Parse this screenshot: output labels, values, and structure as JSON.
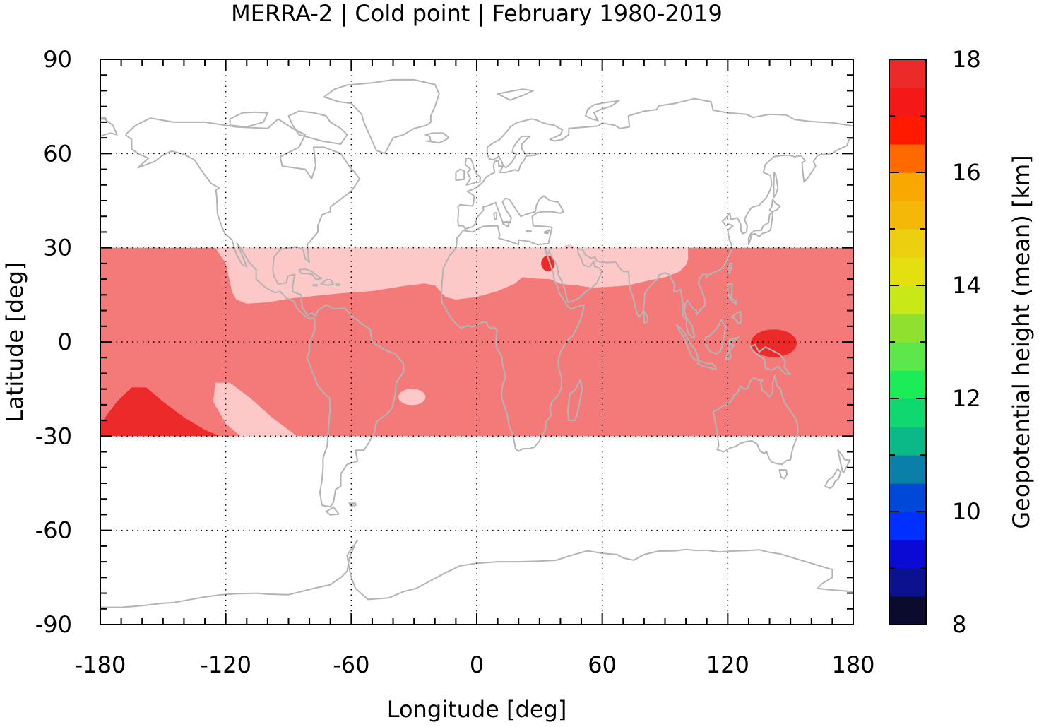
{
  "chart_data": {
    "type": "heatmap",
    "title": "MERRA-2 | Cold point | February 1980-2019",
    "xlabel": "Longitude [deg]",
    "ylabel": "Latitude [deg]",
    "xlim": [
      -180,
      180
    ],
    "ylim": [
      -90,
      90
    ],
    "xticks": [
      -180,
      -120,
      -60,
      0,
      60,
      120,
      180
    ],
    "yticks": [
      -90,
      -60,
      -30,
      0,
      30,
      60,
      90
    ],
    "grid": true,
    "colorbar": {
      "label": "Geopotential height (mean) [km]",
      "range": [
        8,
        18
      ],
      "ticks": [
        8,
        10,
        12,
        14,
        16,
        18
      ],
      "step": 0.5,
      "colors": [
        "#0b0b2e",
        "#0a1290",
        "#0a0ad4",
        "#0030ff",
        "#0048d8",
        "#0a80a8",
        "#0ab888",
        "#10d870",
        "#1cec58",
        "#5ce84a",
        "#90e030",
        "#c8e818",
        "#e4e010",
        "#ecd010",
        "#f4b808",
        "#f8a800",
        "#ff6a00",
        "#ff1a00",
        "#f41818",
        "#ec2a2a",
        "#f47a7a",
        "#fcc8c8"
      ]
    },
    "data_extent": {
      "lat": [
        -30,
        30
      ]
    },
    "regions": [
      {
        "level": 17.5,
        "color": "#f47a7a",
        "description": "background tropical band"
      },
      {
        "level": 18,
        "color": "#fcc8c8",
        "description": "northern subtropical band"
      },
      {
        "level": 18,
        "color": "#fcc8c8",
        "description": "south Pacific / South America"
      },
      {
        "level": 18,
        "color": "#fcc8c8",
        "description": "south Atlantic"
      },
      {
        "level": 17,
        "color": "#ec2a2a",
        "description": "western Pacific warm pool"
      },
      {
        "level": 17,
        "color": "#ec2a2a",
        "description": "south-central Pacific"
      },
      {
        "level": 17,
        "color": "#ec2a2a",
        "description": "Red Sea / Middle East"
      },
      {
        "level": 18,
        "color": "#fcc8c8",
        "description": "Arabian Peninsula"
      },
      {
        "level": 17.5,
        "color": "#f47a7a",
        "description": "South China"
      }
    ],
    "coastline_color": "#b4b4b4"
  }
}
